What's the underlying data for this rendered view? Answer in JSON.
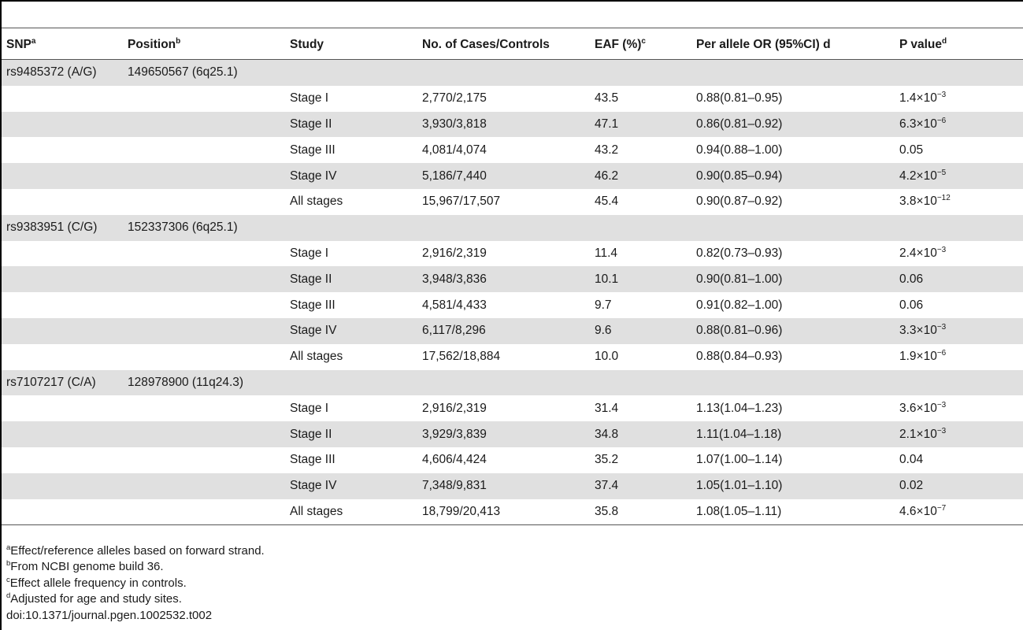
{
  "header": {
    "snp": "SNP",
    "snp_sup": "a",
    "position": "Position",
    "position_sup": "b",
    "study": "Study",
    "cases_controls": "No. of Cases/Controls",
    "eaf": "EAF (%)",
    "eaf_sup": "c",
    "or": "Per allele OR (95%CI) d",
    "pvalue": "P value",
    "pvalue_sup": "d"
  },
  "groups": [
    {
      "snp": "rs9485372 (A/G)",
      "position": "149650567 (6q25.1)",
      "rows": [
        {
          "study": "Stage I",
          "cases": "2,770/2,175",
          "eaf": "43.5",
          "or": "0.88(0.81–0.95)",
          "p_base": "1.4×10",
          "p_exp": "−3"
        },
        {
          "study": "Stage II",
          "cases": "3,930/3,818",
          "eaf": "47.1",
          "or": "0.86(0.81–0.92)",
          "p_base": "6.3×10",
          "p_exp": "−6"
        },
        {
          "study": "Stage III",
          "cases": "4,081/4,074",
          "eaf": "43.2",
          "or": "0.94(0.88–1.00)",
          "p_base": "0.05",
          "p_exp": ""
        },
        {
          "study": "Stage IV",
          "cases": "5,186/7,440",
          "eaf": "46.2",
          "or": "0.90(0.85–0.94)",
          "p_base": "4.2×10",
          "p_exp": "−5"
        },
        {
          "study": "All stages",
          "cases": "15,967/17,507",
          "eaf": "45.4",
          "or": "0.90(0.87–0.92)",
          "p_base": "3.8×10",
          "p_exp": "−12"
        }
      ]
    },
    {
      "snp": "rs9383951 (C/G)",
      "position": "152337306 (6q25.1)",
      "rows": [
        {
          "study": "Stage I",
          "cases": "2,916/2,319",
          "eaf": "11.4",
          "or": "0.82(0.73–0.93)",
          "p_base": "2.4×10",
          "p_exp": "−3"
        },
        {
          "study": "Stage II",
          "cases": "3,948/3,836",
          "eaf": "10.1",
          "or": "0.90(0.81–1.00)",
          "p_base": "0.06",
          "p_exp": ""
        },
        {
          "study": "Stage III",
          "cases": "4,581/4,433",
          "eaf": "9.7",
          "or": "0.91(0.82–1.00)",
          "p_base": "0.06",
          "p_exp": ""
        },
        {
          "study": "Stage IV",
          "cases": "6,117/8,296",
          "eaf": "9.6",
          "or": "0.88(0.81–0.96)",
          "p_base": "3.3×10",
          "p_exp": "−3"
        },
        {
          "study": "All stages",
          "cases": "17,562/18,884",
          "eaf": "10.0",
          "or": "0.88(0.84–0.93)",
          "p_base": "1.9×10",
          "p_exp": "−6"
        }
      ]
    },
    {
      "snp": "rs7107217 (C/A)",
      "position": "128978900 (11q24.3)",
      "rows": [
        {
          "study": "Stage I",
          "cases": "2,916/2,319",
          "eaf": "31.4",
          "or": "1.13(1.04–1.23)",
          "p_base": "3.6×10",
          "p_exp": "−3"
        },
        {
          "study": "Stage II",
          "cases": "3,929/3,839",
          "eaf": "34.8",
          "or": "1.11(1.04–1.18)",
          "p_base": "2.1×10",
          "p_exp": "−3"
        },
        {
          "study": "Stage III",
          "cases": "4,606/4,424",
          "eaf": "35.2",
          "or": "1.07(1.00–1.14)",
          "p_base": "0.04",
          "p_exp": ""
        },
        {
          "study": "Stage IV",
          "cases": "7,348/9,831",
          "eaf": "37.4",
          "or": "1.05(1.01–1.10)",
          "p_base": "0.02",
          "p_exp": ""
        },
        {
          "study": "All stages",
          "cases": "18,799/20,413",
          "eaf": "35.8",
          "or": "1.08(1.05–1.11)",
          "p_base": "4.6×10",
          "p_exp": "−7"
        }
      ]
    }
  ],
  "footnotes": [
    {
      "sup": "a",
      "text": "Effect/reference alleles based on forward strand."
    },
    {
      "sup": "b",
      "text": "From NCBI genome build 36."
    },
    {
      "sup": "c",
      "text": "Effect allele frequency in controls."
    },
    {
      "sup": "d",
      "text": "Adjusted for age and study sites."
    }
  ],
  "doi": "doi:10.1371/journal.pgen.1002532.t002"
}
